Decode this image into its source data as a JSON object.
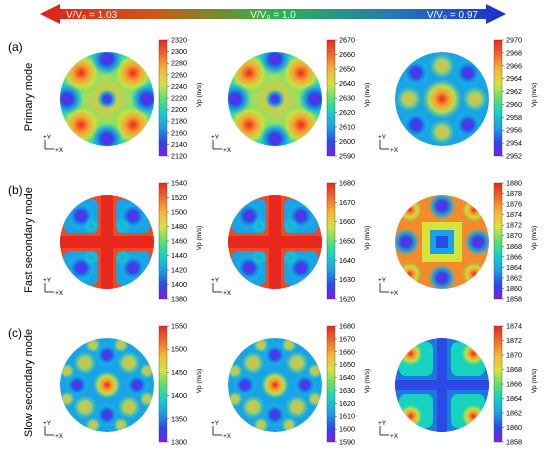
{
  "velocity_bar": {
    "left_label": "V/V₀ = 1.03",
    "center_label": "V/V₀ = 1.0",
    "right_label": "V/V₀ = 0.97"
  },
  "colormap": [
    "#7a1cf0",
    "#2a3ce0",
    "#1aa8e6",
    "#1ad9a8",
    "#6fe35a",
    "#d8e63a",
    "#f7c431",
    "#f58a2a",
    "#e83a2a"
  ],
  "axis_labels": {
    "y": "+Y",
    "x": "+X"
  },
  "colorbar_unit": "Vp (m/s)",
  "rows": [
    {
      "panel_letter": "(a)",
      "mode_label": "Primary mode",
      "plots": [
        {
          "ticks": [
            "2320",
            "2300",
            "2280",
            "2260",
            "2240",
            "2220",
            "2200",
            "2180",
            "2160",
            "2140",
            "2120"
          ]
        },
        {
          "ticks": [
            "2670",
            "2660",
            "2650",
            "2640",
            "2630",
            "2620",
            "2610",
            "2600",
            "2590"
          ]
        },
        {
          "ticks": [
            "2970",
            "2968",
            "2966",
            "2964",
            "2962",
            "2960",
            "2958",
            "2956",
            "2954",
            "2952"
          ]
        }
      ]
    },
    {
      "panel_letter": "(b)",
      "mode_label": "Fast secondary mode",
      "plots": [
        {
          "ticks": [
            "1540",
            "1520",
            "1500",
            "1480",
            "1460",
            "1440",
            "1420",
            "1400",
            "1380"
          ]
        },
        {
          "ticks": [
            "1680",
            "1670",
            "1660",
            "1650",
            "1640",
            "1630",
            "1620"
          ]
        },
        {
          "ticks": [
            "1880",
            "1878",
            "1876",
            "1874",
            "1872",
            "1870",
            "1868",
            "1866",
            "1864",
            "1862",
            "1860",
            "1858"
          ]
        }
      ]
    },
    {
      "panel_letter": "(c)",
      "mode_label": "Slow secondary mode",
      "plots": [
        {
          "ticks": [
            "1550",
            "1500",
            "1450",
            "1400",
            "1350",
            "1300"
          ]
        },
        {
          "ticks": [
            "1680",
            "1670",
            "1660",
            "1650",
            "1640",
            "1630",
            "1620",
            "1610",
            "1600",
            "1590"
          ]
        },
        {
          "ticks": [
            "1874",
            "1872",
            "1870",
            "1868",
            "1866",
            "1864",
            "1862",
            "1860",
            "1858"
          ]
        }
      ]
    }
  ]
}
